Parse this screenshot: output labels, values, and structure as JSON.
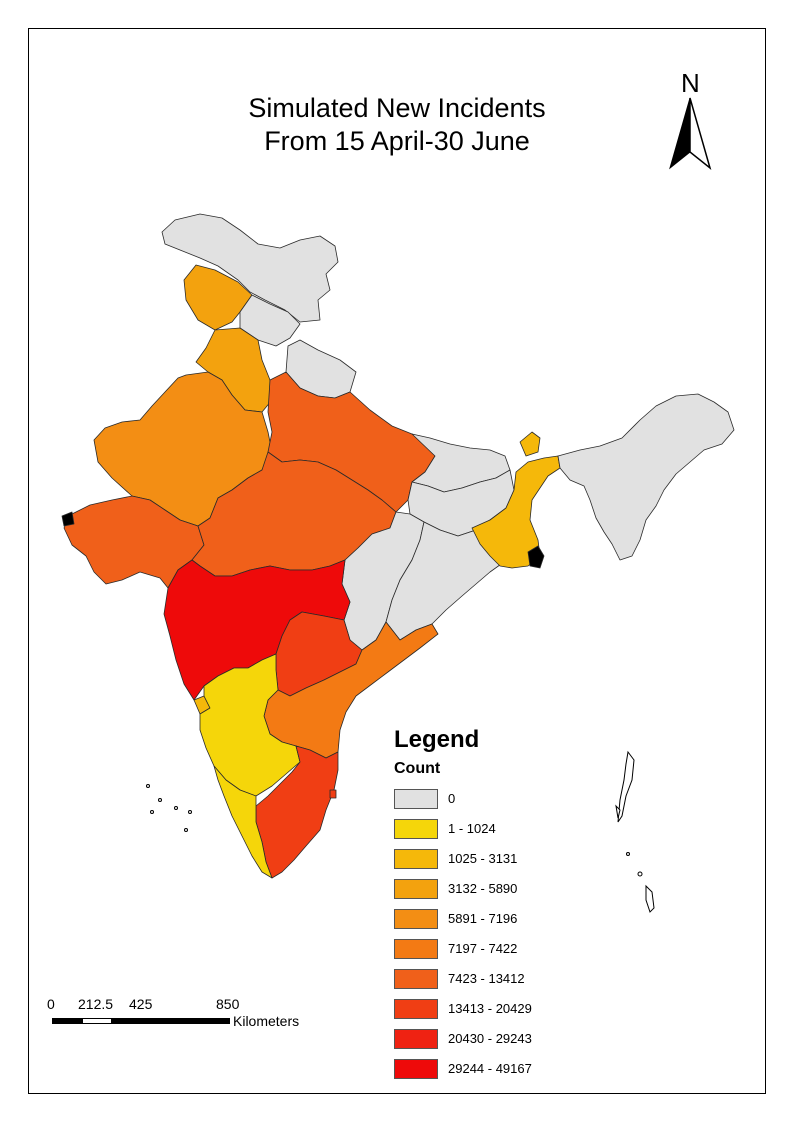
{
  "map": {
    "title_line1": "Simulated New Incidents",
    "title_line2": "From 15 April-30 June",
    "north_label": "N"
  },
  "legend": {
    "title": "Legend",
    "subtitle": "Count",
    "classes": [
      {
        "label": "0",
        "color": "#e1e1e1"
      },
      {
        "label": "1 - 1024",
        "color": "#f5d60a"
      },
      {
        "label": "1025 - 3131",
        "color": "#f5b80a"
      },
      {
        "label": "3132 - 5890",
        "color": "#f3a20e"
      },
      {
        "label": "5891 - 7196",
        "color": "#f38e14"
      },
      {
        "label": "7197 - 7422",
        "color": "#f37a14"
      },
      {
        "label": "7423 - 13412",
        "color": "#f0601a"
      },
      {
        "label": "13413 - 20429",
        "color": "#f03e14"
      },
      {
        "label": "20430 - 29243",
        "color": "#ef2212"
      },
      {
        "label": "29244 - 49167",
        "color": "#ee0a0a"
      }
    ]
  },
  "scale_bar": {
    "ticks": [
      "0",
      "212.5",
      "425",
      "850"
    ],
    "units": "Kilometers"
  }
}
